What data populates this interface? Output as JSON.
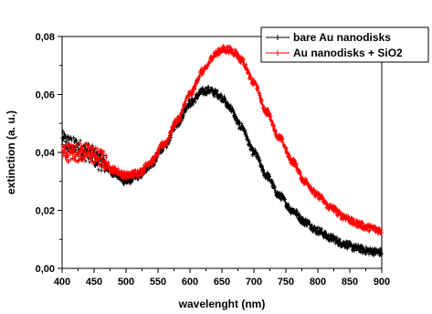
{
  "chart_data": {
    "type": "line",
    "title": "",
    "xlabel": "wavelenght (nm)",
    "ylabel": "extinction (a. u.)",
    "xlim": [
      400,
      900
    ],
    "ylim": [
      0.0,
      0.08
    ],
    "xticks": [
      "400",
      "450",
      "500",
      "550",
      "600",
      "650",
      "700",
      "750",
      "800",
      "850",
      "900"
    ],
    "yticks": [
      "0,00",
      "0,02",
      "0,04",
      "0,06",
      "0,08"
    ],
    "grid": false,
    "legend": "top-right",
    "series": [
      {
        "name": "bare Au nanodisks",
        "color": "#000000",
        "x": [
          400,
          420,
          440,
          460,
          480,
          500,
          520,
          540,
          560,
          580,
          600,
          620,
          630,
          640,
          650,
          660,
          680,
          700,
          720,
          740,
          760,
          780,
          800,
          820,
          840,
          860,
          880,
          900
        ],
        "y": [
          0.044,
          0.042,
          0.04,
          0.037,
          0.033,
          0.03,
          0.032,
          0.036,
          0.042,
          0.05,
          0.057,
          0.061,
          0.0615,
          0.0605,
          0.059,
          0.056,
          0.049,
          0.04,
          0.032,
          0.025,
          0.02,
          0.016,
          0.013,
          0.0105,
          0.0085,
          0.007,
          0.006,
          0.0055
        ]
      },
      {
        "name": "Au nanodisks + SiO2",
        "color": "#ff0000",
        "x": [
          400,
          420,
          440,
          460,
          480,
          500,
          520,
          540,
          560,
          580,
          600,
          620,
          640,
          650,
          660,
          670,
          680,
          700,
          720,
          740,
          760,
          780,
          800,
          820,
          840,
          860,
          880,
          900
        ],
        "y": [
          0.04,
          0.04,
          0.04,
          0.038,
          0.034,
          0.032,
          0.033,
          0.037,
          0.043,
          0.051,
          0.06,
          0.068,
          0.074,
          0.0755,
          0.0755,
          0.0745,
          0.072,
          0.064,
          0.054,
          0.045,
          0.037,
          0.03,
          0.025,
          0.021,
          0.018,
          0.0155,
          0.014,
          0.013
        ]
      }
    ]
  }
}
